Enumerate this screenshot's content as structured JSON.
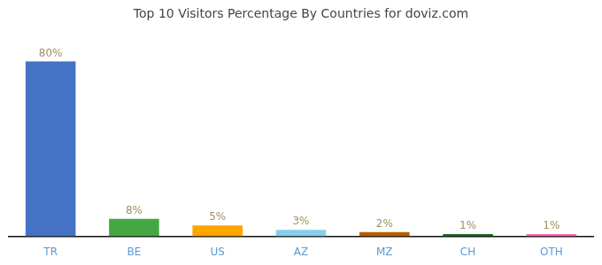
{
  "chart_data": {
    "type": "bar",
    "title": "Top 10 Visitors Percentage By Countries for doviz.com",
    "categories": [
      "TR",
      "BE",
      "US",
      "AZ",
      "MZ",
      "CH",
      "OTH"
    ],
    "values": [
      80,
      8,
      5,
      3,
      2,
      1,
      1
    ],
    "value_labels": [
      "80%",
      "8%",
      "5%",
      "3%",
      "2%",
      "1%",
      "1%"
    ],
    "colors": [
      "#4472c4",
      "#43a844",
      "#ffa500",
      "#87ceeb",
      "#b85c00",
      "#1a6b1a",
      "#ff69b4"
    ],
    "ylim": [
      0,
      90
    ],
    "grid": false,
    "data_labels": true,
    "tick_labels": "x"
  }
}
